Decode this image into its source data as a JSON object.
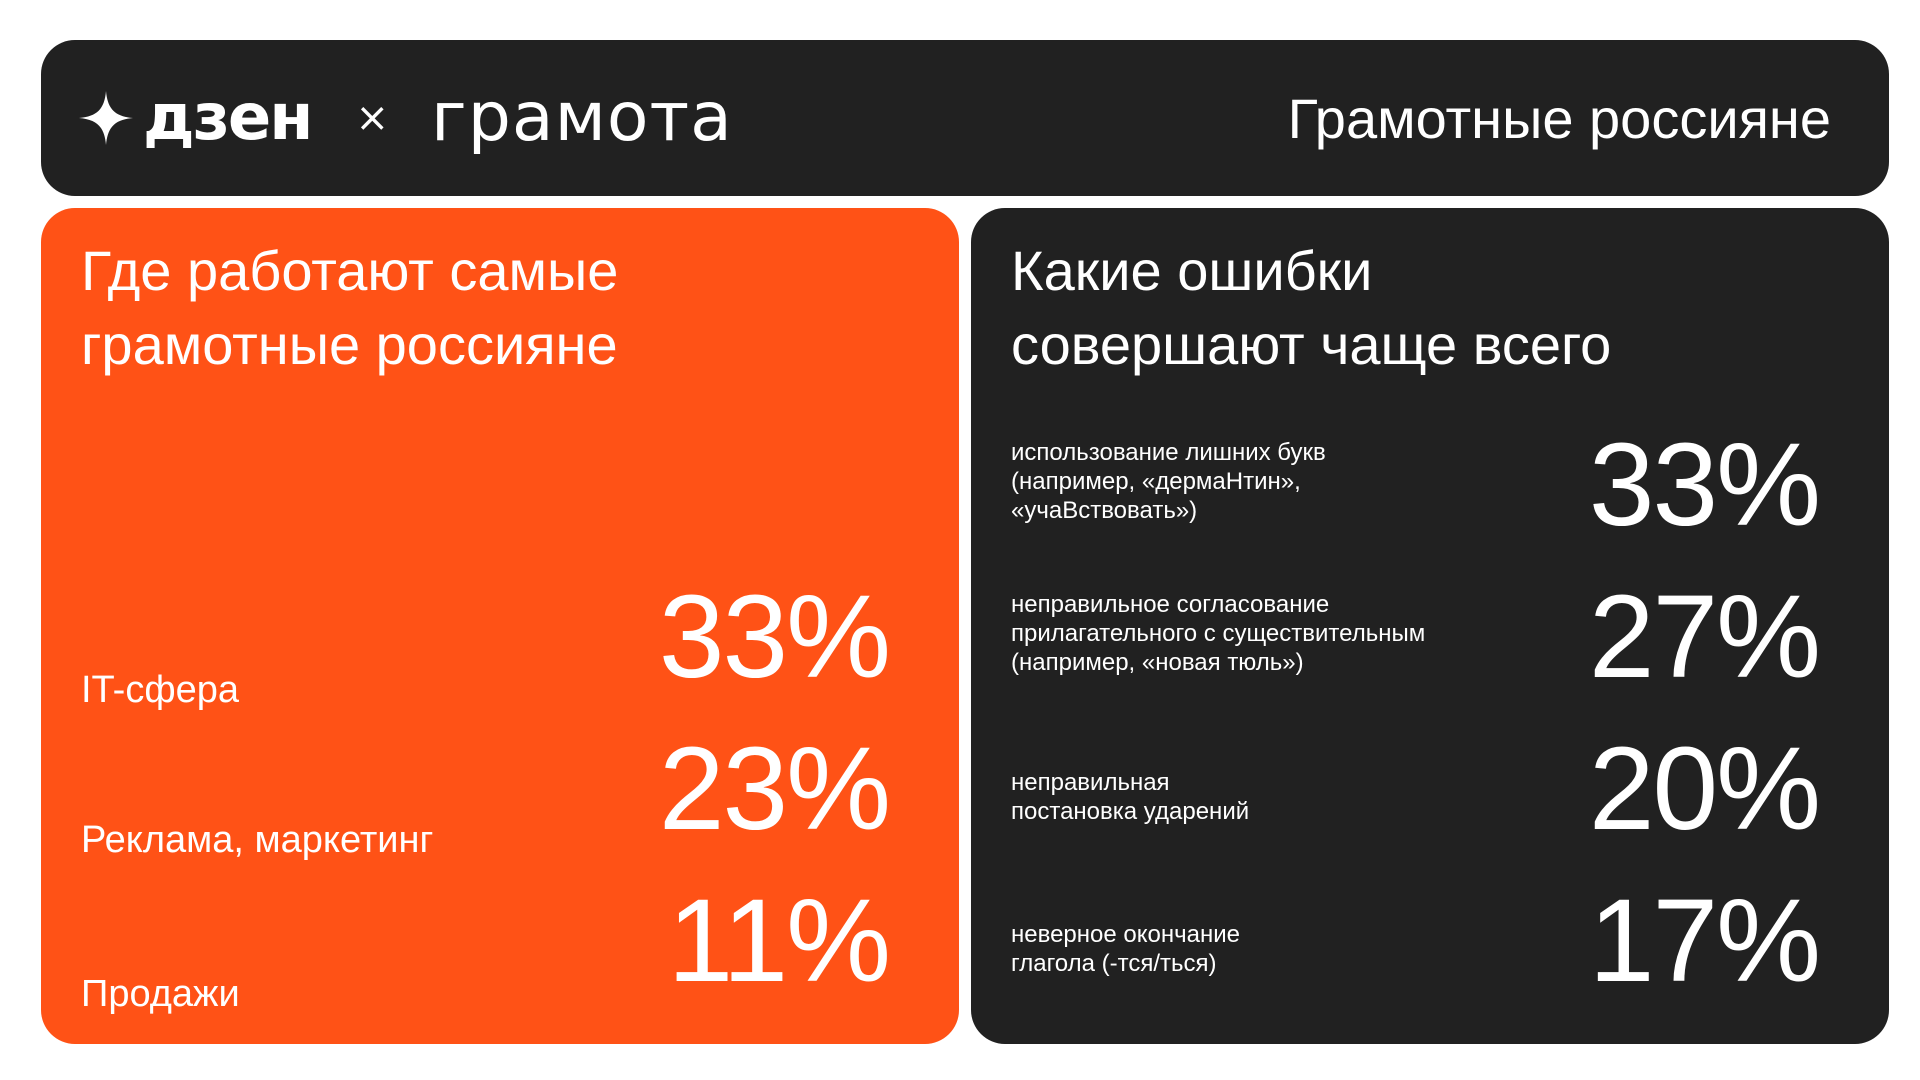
{
  "header": {
    "brand": "дзен",
    "separator": "×",
    "partner": "грамота",
    "title": "Грамотные россияне"
  },
  "left_panel": {
    "title": "Где работают самые\nграмотные россияне",
    "accent_color": "#ff5216",
    "items": [
      {
        "label": "IT-сфера",
        "percent": "33%"
      },
      {
        "label": "Реклама, маркетинг",
        "percent": "23%"
      },
      {
        "label": "Продажи",
        "percent": "11%"
      }
    ]
  },
  "right_panel": {
    "title": "Какие ошибки\nсовершают чаще всего",
    "background_color": "#212121",
    "items": [
      {
        "label": "использование лишних букв\n(например, «дермаНтин»,\n«учаВствовать»)",
        "percent": "33%"
      },
      {
        "label": "неправильное согласование\nприлагательного с существительным\n(например, «новая тюль»)",
        "percent": "27%"
      },
      {
        "label": "неправильная\nпостановка ударений",
        "percent": "20%"
      },
      {
        "label": "неверное окончание\nглагола (-тся/ться)",
        "percent": "17%"
      }
    ]
  }
}
